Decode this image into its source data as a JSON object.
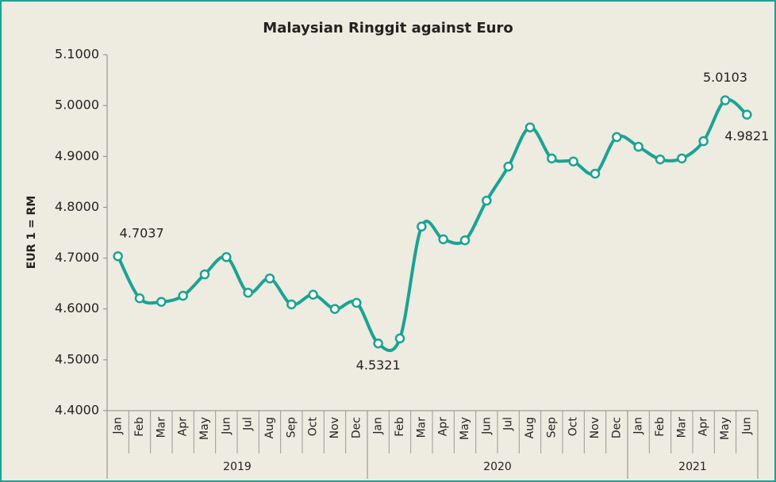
{
  "chart_data": {
    "type": "line",
    "title": "Malaysian Ringgit against Euro",
    "y_label": "EUR 1 = RM",
    "groups": [
      {
        "label": "2019",
        "categories": [
          "Jan",
          "Feb",
          "Mar",
          "Apr",
          "May",
          "Jun",
          "Jul",
          "Aug",
          "Sep",
          "Oct",
          "Nov",
          "Dec"
        ]
      },
      {
        "label": "2020",
        "categories": [
          "Jan",
          "Feb",
          "Mar",
          "Apr",
          "May",
          "Jun",
          "Jul",
          "Aug",
          "Sep",
          "Oct",
          "Nov",
          "Dec"
        ]
      },
      {
        "label": "2021",
        "categories": [
          "Jan",
          "Feb",
          "Mar",
          "Apr",
          "May",
          "Jun"
        ]
      }
    ],
    "values": [
      4.7037,
      4.621,
      4.614,
      4.626,
      4.668,
      4.702,
      4.632,
      4.66,
      4.609,
      4.628,
      4.6,
      4.612,
      4.5321,
      4.542,
      4.762,
      4.737,
      4.735,
      4.813,
      4.88,
      4.957,
      4.896,
      4.89,
      4.866,
      4.938,
      4.919,
      4.894,
      4.896,
      4.93,
      5.0103,
      4.9821
    ],
    "value_labels": [
      "4.7037",
      null,
      null,
      null,
      null,
      null,
      null,
      null,
      null,
      null,
      null,
      null,
      "4.5321",
      null,
      null,
      null,
      null,
      null,
      null,
      null,
      null,
      null,
      null,
      null,
      null,
      null,
      null,
      null,
      "5.0103",
      "4.9821"
    ],
    "color": "#1aa393",
    "ylim": [
      4.4,
      5.1
    ],
    "yticks": [
      {
        "value": 4.4,
        "label": "4.4000"
      },
      {
        "value": 4.5,
        "label": "4.5000"
      },
      {
        "value": 4.6,
        "label": "4.6000"
      },
      {
        "value": 4.7,
        "label": "4.7000"
      },
      {
        "value": 4.8,
        "label": "4.8000"
      },
      {
        "value": 4.9,
        "label": "4.9000"
      },
      {
        "value": 5.0,
        "label": "5.0000"
      },
      {
        "value": 5.1,
        "label": "5.1000"
      }
    ],
    "grid": false
  }
}
